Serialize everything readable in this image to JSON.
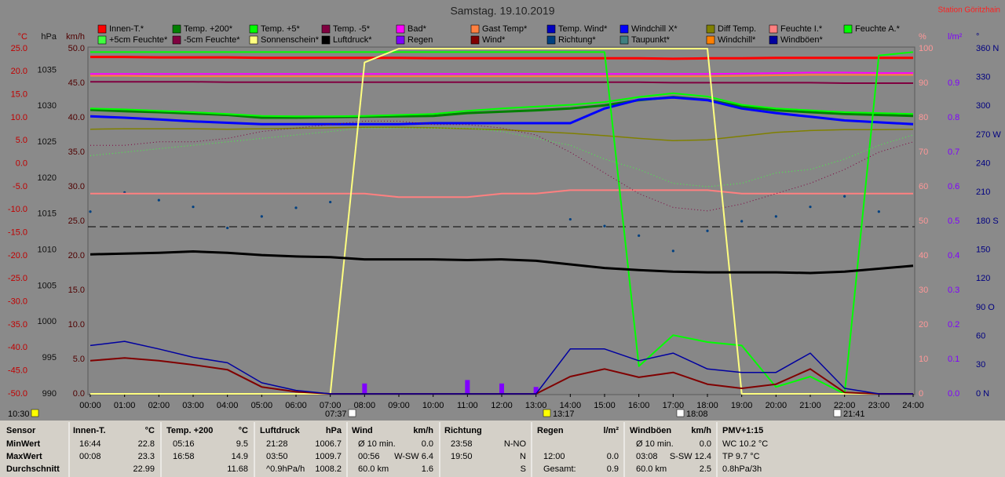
{
  "chart_data": {
    "type": "line",
    "title": "Samstag. 19.10.2019",
    "station": "Station Göritzhain",
    "categories": [
      "00:00",
      "01:00",
      "02:00",
      "03:00",
      "04:00",
      "05:00",
      "06:00",
      "07:00",
      "08:00",
      "09:00",
      "10:00",
      "11:00",
      "12:00",
      "13:00",
      "14:00",
      "15:00",
      "16:00",
      "17:00",
      "18:00",
      "19:00",
      "20:00",
      "21:00",
      "22:00",
      "23:00",
      "24:00"
    ],
    "markers": [
      "10:30",
      "07:37",
      "13:17",
      "18:08",
      "21:41"
    ],
    "axes": {
      "temp": {
        "unit": "°C",
        "ylim": [
          -50,
          25
        ],
        "yticks": [
          {
            "value": 25,
            "label": "25.0"
          },
          {
            "value": 20,
            "label": "20.0"
          },
          {
            "value": 15,
            "label": "15.0"
          },
          {
            "value": 10,
            "label": "10.0"
          },
          {
            "value": 5,
            "label": "5.0"
          },
          {
            "value": 0,
            "label": "0.0"
          },
          {
            "value": -5,
            "label": "-5.0"
          },
          {
            "value": -10,
            "label": "-10.0"
          },
          {
            "value": -15,
            "label": "-15.0"
          },
          {
            "value": -20,
            "label": "-20.0"
          },
          {
            "value": -25,
            "label": "-25.0"
          },
          {
            "value": -30,
            "label": "-30.0"
          },
          {
            "value": -35,
            "label": "-35.0"
          },
          {
            "value": -40,
            "label": "-40.0"
          },
          {
            "value": -45,
            "label": "-45.0"
          },
          {
            "value": -50,
            "label": "-50.0"
          }
        ]
      },
      "hpa": {
        "unit": "hPa",
        "ylim": [
          990,
          1038
        ],
        "yticks": [
          1035,
          1030,
          1025,
          1020,
          1015,
          1010,
          1005,
          1000,
          995,
          990
        ]
      },
      "kmh": {
        "unit": "km/h",
        "ylim": [
          0,
          50
        ],
        "yticks": [
          {
            "value": 50,
            "label": "50.0"
          },
          {
            "value": 45,
            "label": "45.0"
          },
          {
            "value": 40,
            "label": "40.0"
          },
          {
            "value": 35,
            "label": "35.0"
          },
          {
            "value": 30,
            "label": "30.0"
          },
          {
            "value": 25,
            "label": "25.0"
          },
          {
            "value": 20,
            "label": "20.0"
          },
          {
            "value": 15,
            "label": "15.0"
          },
          {
            "value": 10,
            "label": "10.0"
          },
          {
            "value": 5,
            "label": "5.0"
          },
          {
            "value": 0,
            "label": "0.0"
          }
        ]
      },
      "pct": {
        "unit": "%",
        "ylim": [
          0,
          100
        ],
        "yticks": [
          100,
          90,
          80,
          70,
          60,
          50,
          40,
          30,
          20,
          10,
          0
        ]
      },
      "rain": {
        "unit": "l/m²",
        "ylim": [
          0,
          1
        ],
        "yticks": [
          0.9,
          0.8,
          0.7,
          0.6,
          0.5,
          0.4,
          0.3,
          0.2,
          0.1,
          {
            "value": 0,
            "label": "0.0"
          }
        ]
      },
      "dir": {
        "unit": "°",
        "ylim": [
          0,
          360
        ],
        "yticks": [
          {
            "value": 360,
            "label": "360 N"
          },
          330,
          300,
          {
            "value": 270,
            "label": "270 W"
          },
          240,
          210,
          {
            "value": 180,
            "label": "180 S"
          },
          150,
          120,
          {
            "value": 90,
            "label": "90 O"
          },
          60,
          30,
          {
            "value": 0,
            "label": "0 N"
          }
        ]
      }
    },
    "series": [
      {
        "name": "Innen-T.*",
        "color": "#ff0000",
        "axis": "temp",
        "style": "line",
        "linewidth": 3,
        "values": [
          23.2,
          23.2,
          23.1,
          23.1,
          23.1,
          23.0,
          23.0,
          23.0,
          23.0,
          23.0,
          22.9,
          22.9,
          22.9,
          22.9,
          22.9,
          22.9,
          22.9,
          22.8,
          22.9,
          22.9,
          23.0,
          23.0,
          23.0,
          23.0,
          23.0
        ]
      },
      {
        "name": "Temp. +200*",
        "color": "#008000",
        "axis": "temp",
        "style": "line",
        "linewidth": 3,
        "values": [
          11.7,
          11.4,
          11.2,
          10.9,
          10.6,
          10.0,
          10.0,
          10.1,
          10.2,
          10.3,
          10.4,
          11.0,
          11.3,
          11.6,
          12.0,
          12.7,
          13.8,
          14.5,
          13.9,
          12.4,
          11.6,
          11.2,
          10.8,
          10.6,
          10.4
        ]
      },
      {
        "name": "Temp. +5*",
        "color": "#00ff00",
        "axis": "temp",
        "style": "line",
        "linewidth": 2,
        "values": [
          12.0,
          11.8,
          11.5,
          11.2,
          10.8,
          10.4,
          10.3,
          10.3,
          10.4,
          10.6,
          10.8,
          11.5,
          12.0,
          12.4,
          12.8,
          13.4,
          14.5,
          15.3,
          14.6,
          12.8,
          12.0,
          11.6,
          11.2,
          11.0,
          10.8
        ]
      },
      {
        "name": "Temp. -5*",
        "color": "#800040",
        "axis": "temp",
        "style": "line",
        "linewidth": 2,
        "values": [
          17.8,
          17.8,
          17.8,
          17.8,
          17.7,
          17.7,
          17.7,
          17.7,
          17.7,
          17.7,
          17.7,
          17.7,
          17.7,
          17.7,
          17.7,
          17.7,
          17.7,
          17.6,
          17.6,
          17.6,
          17.6,
          17.6,
          17.5,
          17.5,
          17.5
        ]
      },
      {
        "name": "Bad*",
        "color": "#ff00ff",
        "axis": "temp",
        "style": "line",
        "linewidth": 2,
        "values": [
          19.5,
          19.5,
          19.5,
          19.5,
          19.5,
          19.5,
          19.5,
          19.5,
          19.5,
          19.5,
          19.5,
          19.5,
          19.5,
          19.5,
          19.5,
          19.5,
          19.5,
          19.5,
          19.5,
          19.6,
          19.7,
          19.8,
          19.8,
          19.7,
          19.7
        ]
      },
      {
        "name": "Gast Temp*",
        "color": "#ff8040",
        "axis": "temp",
        "style": "line",
        "linewidth": 2,
        "values": [
          19.1,
          19.1,
          19.0,
          19.0,
          19.0,
          19.0,
          19.0,
          19.0,
          19.0,
          19.0,
          19.0,
          19.0,
          19.0,
          19.0,
          19.0,
          19.0,
          19.0,
          19.0,
          19.0,
          19.1,
          19.2,
          19.3,
          19.3,
          19.3,
          19.3
        ]
      },
      {
        "name": "Temp. Wind*",
        "color": "#0000c0"
      },
      {
        "name": "Windchill X*",
        "color": "#0000ff",
        "axis": "temp",
        "style": "line",
        "linewidth": 3,
        "values": [
          10.3,
          10.0,
          9.6,
          9.2,
          8.9,
          8.6,
          8.6,
          8.6,
          8.6,
          8.6,
          8.8,
          8.8,
          8.8,
          8.8,
          8.8,
          12.0,
          13.9,
          14.4,
          13.8,
          12.0,
          11.0,
          10.2,
          9.4,
          9.0,
          8.6
        ]
      },
      {
        "name": "Diff Temp.",
        "color": "#808000",
        "axis": "temp",
        "style": "line",
        "linewidth": 1.5,
        "values": [
          7.5,
          7.6,
          7.6,
          7.6,
          7.5,
          7.6,
          7.7,
          7.8,
          7.9,
          7.9,
          7.8,
          7.6,
          7.4,
          7.0,
          6.6,
          6.1,
          5.5,
          5.0,
          5.2,
          6.0,
          6.8,
          7.2,
          7.4,
          7.4,
          7.5
        ]
      },
      {
        "name": "Feuchte I.*",
        "color": "#ff8080",
        "axis": "pct",
        "style": "line",
        "linewidth": 2,
        "values": [
          58,
          58,
          58,
          58,
          58,
          58,
          58,
          58,
          58,
          57,
          57,
          57,
          58,
          58,
          59,
          59,
          59,
          59,
          59,
          58,
          58,
          58,
          58,
          58,
          58
        ]
      },
      {
        "name": "Feuchte A.*",
        "color": "#00ff00",
        "axis": "pct",
        "style": "line",
        "linewidth": 2,
        "values": [
          99,
          99,
          99,
          99,
          99,
          99,
          99,
          99,
          99,
          99,
          99,
          99,
          99,
          99,
          99,
          99,
          8,
          17,
          15,
          14,
          2,
          5,
          0,
          98,
          99
        ]
      },
      {
        "name": "+5cm Feuchte*",
        "color": "#40ff40",
        "axis": "pct",
        "style": "dotted",
        "linewidth": 1,
        "values": [
          69,
          70,
          71,
          72,
          73,
          74,
          75,
          76,
          77,
          77,
          77,
          77,
          76,
          74,
          72,
          68,
          65,
          61,
          60,
          61,
          64,
          65,
          68,
          72,
          75
        ]
      },
      {
        "name": "-5cm Feuchte*",
        "color": "#800040",
        "axis": "pct",
        "style": "dotted",
        "linewidth": 1,
        "values": [
          72,
          72,
          73,
          73,
          74,
          76,
          77,
          78,
          79,
          79,
          78,
          78,
          77,
          75,
          70,
          64,
          58,
          54,
          53,
          55,
          58,
          61,
          65,
          70,
          73
        ]
      },
      {
        "name": "Sonnenschein*",
        "color": "#ffff80",
        "axis": "pct",
        "style": "line",
        "linewidth": 2,
        "values": [
          0,
          0,
          0,
          0,
          0,
          0,
          0,
          0,
          96,
          100,
          100,
          100,
          100,
          100,
          100,
          100,
          100,
          100,
          100,
          0,
          0,
          0,
          0,
          0,
          0
        ]
      },
      {
        "name": "Luftdruck*",
        "color": "#000000",
        "axis": "hpa",
        "style": "line",
        "linewidth": 3,
        "values": [
          1009.4,
          1009.5,
          1009.6,
          1009.8,
          1009.6,
          1009.3,
          1009.1,
          1009.0,
          1008.7,
          1008.7,
          1008.7,
          1008.6,
          1008.7,
          1008.5,
          1008.0,
          1007.5,
          1007.2,
          1007.0,
          1006.9,
          1006.9,
          1006.9,
          1006.8,
          1007.0,
          1007.4,
          1007.8
        ]
      },
      {
        "name": "Regen",
        "color": "#8000ff",
        "axis": "rain",
        "style": "bars",
        "values": [
          0,
          0,
          0,
          0,
          0,
          0,
          0,
          0,
          0.03,
          0,
          0,
          0.04,
          0.03,
          0.02,
          0,
          0,
          0,
          0,
          0,
          0,
          0,
          0,
          0,
          0,
          0
        ]
      },
      {
        "name": "Wind*",
        "color": "#800000",
        "axis": "kmh",
        "style": "line",
        "linewidth": 2,
        "values": [
          4.8,
          5.2,
          4.8,
          4.2,
          3.5,
          1.0,
          0.3,
          0,
          0,
          0,
          0,
          0,
          0,
          0,
          2.5,
          3.6,
          2.4,
          3.1,
          1.4,
          0.8,
          1.4,
          3.6,
          0.2,
          0,
          0
        ]
      },
      {
        "name": "Richtung*",
        "color": "#004080",
        "axis": "dir",
        "style": "dots",
        "values": [
          190,
          210,
          202,
          195,
          173,
          185,
          194,
          200,
          null,
          null,
          null,
          null,
          null,
          null,
          182,
          175,
          165,
          149,
          170,
          180,
          185,
          195,
          206,
          190,
          null
        ]
      },
      {
        "name": "Taupunkt*",
        "color": "#408080"
      },
      {
        "name": "Windchill*",
        "color": "#ff8000"
      },
      {
        "name": "Windböen*",
        "color": "#0000a0",
        "axis": "kmh",
        "style": "line",
        "linewidth": 1.5,
        "values": [
          7.0,
          7.6,
          6.5,
          5.3,
          4.5,
          1.6,
          0.5,
          0,
          0,
          0,
          0,
          0,
          0,
          0,
          6.5,
          6.5,
          4.8,
          5.9,
          3.6,
          3.1,
          3.1,
          5.9,
          0.8,
          0,
          0
        ]
      }
    ]
  },
  "table": {
    "columns": [
      {
        "header": "Sensor",
        "rows": [
          "MinWert",
          "MaxWert",
          "Durchschnitt"
        ]
      },
      {
        "header": "Innen-T.",
        "unit": "°C",
        "rows": [
          [
            "16:44",
            "22.8"
          ],
          [
            "00:08",
            "23.3"
          ],
          [
            null,
            "22.99"
          ]
        ]
      },
      {
        "header": "Temp. +200",
        "unit": "°C",
        "rows": [
          [
            "05:16",
            "9.5"
          ],
          [
            "16:58",
            "14.9"
          ],
          [
            null,
            "11.68"
          ]
        ]
      },
      {
        "header": "Luftdruck",
        "unit": "hPa",
        "rows": [
          [
            "21:28",
            "1006.7"
          ],
          [
            "03:50",
            "1009.7"
          ],
          [
            "^0.9hPa/h",
            "1008.2"
          ]
        ]
      },
      {
        "header": "Wind",
        "unit": "km/h",
        "rows": [
          [
            "Ø 10 min.",
            "0.0"
          ],
          [
            "00:56",
            "W-SW 6.4"
          ],
          [
            "60.0 km",
            "1.6"
          ]
        ]
      },
      {
        "header": "Richtung",
        "rows": [
          [
            "23:58",
            "N-NO"
          ],
          [
            "19:50",
            "N"
          ],
          [
            null,
            "S"
          ]
        ]
      },
      {
        "header": "Regen",
        "unit": "l/m²",
        "rows": [
          [
            null,
            null
          ],
          [
            "12:00",
            "0.0"
          ],
          [
            "Gesamt:",
            "0.9"
          ]
        ]
      },
      {
        "header": "Windböen",
        "unit": "km/h",
        "rows": [
          [
            "Ø 10 min.",
            "0.0"
          ],
          [
            "03:08",
            "S-SW 12.4"
          ],
          [
            "60.0 km",
            "2.5"
          ]
        ]
      },
      {
        "header": "PMV+1:15",
        "rows": [
          "WC 10.2 °C",
          "TP 9.7 °C",
          "0.8hPa/3h"
        ]
      }
    ]
  }
}
